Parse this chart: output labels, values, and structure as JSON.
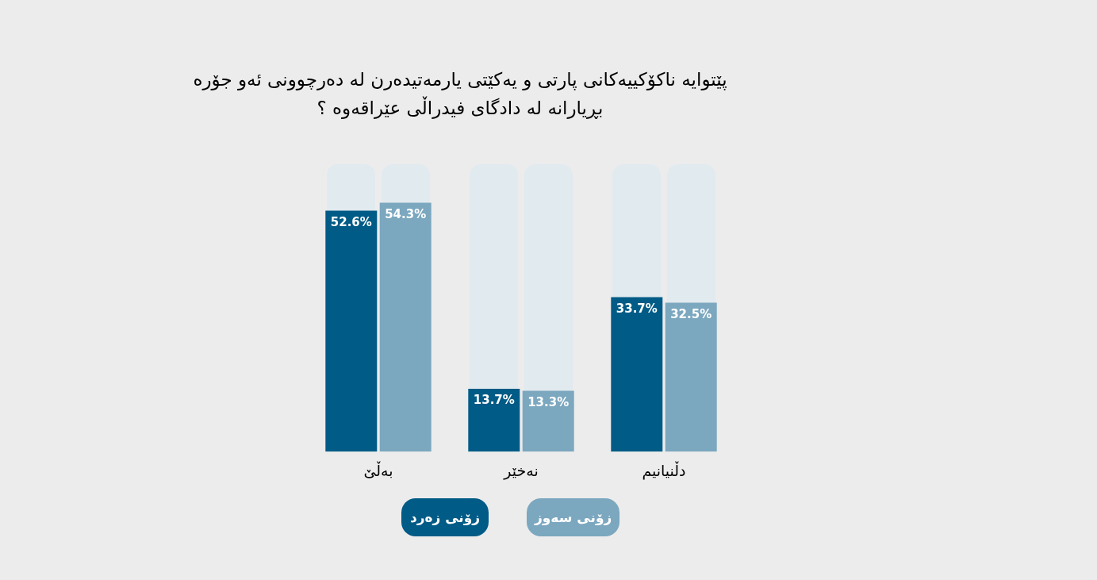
{
  "chart_data": {
    "type": "bar",
    "title": "پێتوایە ناکۆکییەکانی پارتی و یەکێتی یارمەتیدەرن لە دەرچوونی ئەو جۆرە بڕیارانە لە دادگای فیدراڵی عێراقەوە ؟",
    "categories": [
      "بەڵێ",
      "نەخێر",
      "دڵنیانیم"
    ],
    "series": [
      {
        "name": "زۆنی زەرد",
        "color": "#005b86",
        "values": [
          52.6,
          13.7,
          33.7
        ],
        "value_labels": [
          "52.6%",
          "13.7%",
          "33.7%"
        ]
      },
      {
        "name": "زۆنی سەوز",
        "color": "#7ba7bf",
        "values": [
          54.3,
          13.3,
          32.5
        ],
        "value_labels": [
          "54.3%",
          "13.3%",
          "32.5%"
        ]
      }
    ],
    "legend": "bottom",
    "grid": false
  }
}
